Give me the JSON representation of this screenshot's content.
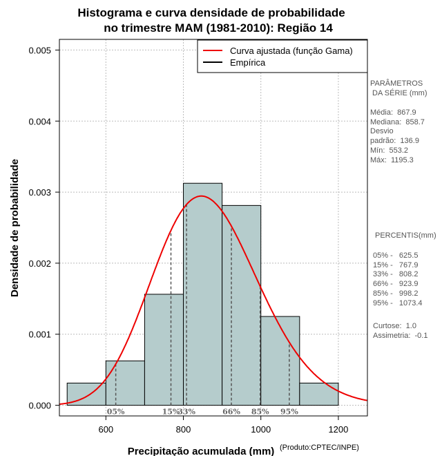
{
  "chart_data": {
    "type": "bar",
    "title": [
      "Histograma e curva densidade de probabilidade",
      "no trimestre MAM (1981-2010): Região 14"
    ],
    "xlabel": "Precipitação acumulada (mm)",
    "ylabel": "Densidade de probabilidade",
    "credit": "(Produto:CPTEC/INPE)",
    "xlim": [
      480,
      1275
    ],
    "ylim": [
      -0.00015,
      0.00515
    ],
    "x_ticks": [
      600,
      800,
      1000,
      1200
    ],
    "x_tick_labels": [
      "600",
      "800",
      "1000",
      "1200"
    ],
    "y_ticks": [
      0,
      0.001,
      0.002,
      0.003,
      0.004,
      0.005
    ],
    "y_tick_labels": [
      "0.000",
      "0.001",
      "0.002",
      "0.003",
      "0.004",
      "0.005"
    ],
    "grid": true,
    "bins": [
      {
        "from": 500,
        "to": 600,
        "density": 0.0003125
      },
      {
        "from": 600,
        "to": 700,
        "density": 0.000625
      },
      {
        "from": 700,
        "to": 800,
        "density": 0.0015625
      },
      {
        "from": 800,
        "to": 900,
        "density": 0.003125
      },
      {
        "from": 900,
        "to": 1000,
        "density": 0.0028125
      },
      {
        "from": 1000,
        "to": 1100,
        "density": 0.00125
      },
      {
        "from": 1100,
        "to": 1200,
        "density": 0.0003125
      }
    ],
    "bar_color": "#b5cccc",
    "curve": {
      "type": "gamma",
      "mean": 867.9,
      "sd": 136.9,
      "color": "#ee0000"
    },
    "legend": {
      "position": "top-right",
      "entries": [
        {
          "label": "Curva ajustada (função Gama)",
          "color": "#ee0000"
        },
        {
          "label": "Empírica",
          "color": "#000000"
        }
      ]
    },
    "percentiles": [
      {
        "label": "05%",
        "value": 625.5
      },
      {
        "label": "15%",
        "value": 767.9
      },
      {
        "label": "33%",
        "value": 808.2
      },
      {
        "label": "66%",
        "value": 923.9
      },
      {
        "label": "85%",
        "value": 998.2
      },
      {
        "label": "95%",
        "value": 1073.4
      }
    ]
  },
  "side_panel": {
    "params_title": "PARÂMETROS\n DA SÉRIE (mm)",
    "params": "Média:  867.9\nMediana:  858.7\nDesvio\npadrão:  136.9\nMín:  553.2\nMáx:  1195.3",
    "percentis_title": "PERCENTIS(mm)",
    "percentis": "05% -   625.5\n15% -   767.9\n33% -   808.2\n66% -   923.9\n85% -   998.2\n95% -   1073.4",
    "stats": "Curtose:  1.0\nAssimetria:  -0.1"
  }
}
